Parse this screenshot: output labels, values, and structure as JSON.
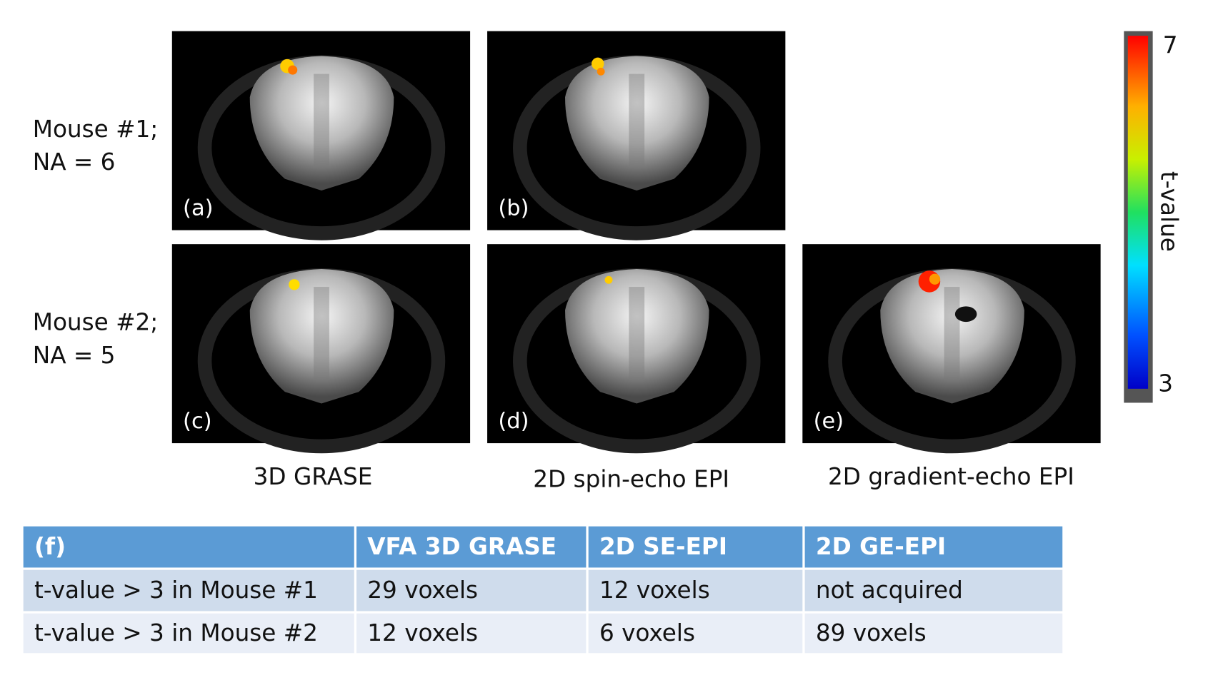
{
  "rows": [
    {
      "label": [
        "Mouse #1;",
        "NA = 6"
      ]
    },
    {
      "label": [
        "Mouse #2;",
        "NA = 5"
      ]
    }
  ],
  "panels": [
    "(a)",
    "(b)",
    "(c)",
    "(d)",
    "(e)"
  ],
  "columns": [
    "3D GRASE",
    "2D spin-echo EPI",
    "2D gradient-echo EPI"
  ],
  "colorbar": {
    "label": "t-value",
    "max": "7",
    "min": "3"
  },
  "table": {
    "header": [
      "(f)",
      "VFA 3D GRASE",
      "2D SE-EPI",
      "2D GE-EPI"
    ],
    "rows": [
      [
        "t-value > 3 in Mouse #1",
        "29 voxels",
        "12 voxels",
        "not acquired"
      ],
      [
        "t-value > 3 in Mouse #2",
        "12 voxels",
        "6 voxels",
        "89 voxels"
      ]
    ]
  }
}
